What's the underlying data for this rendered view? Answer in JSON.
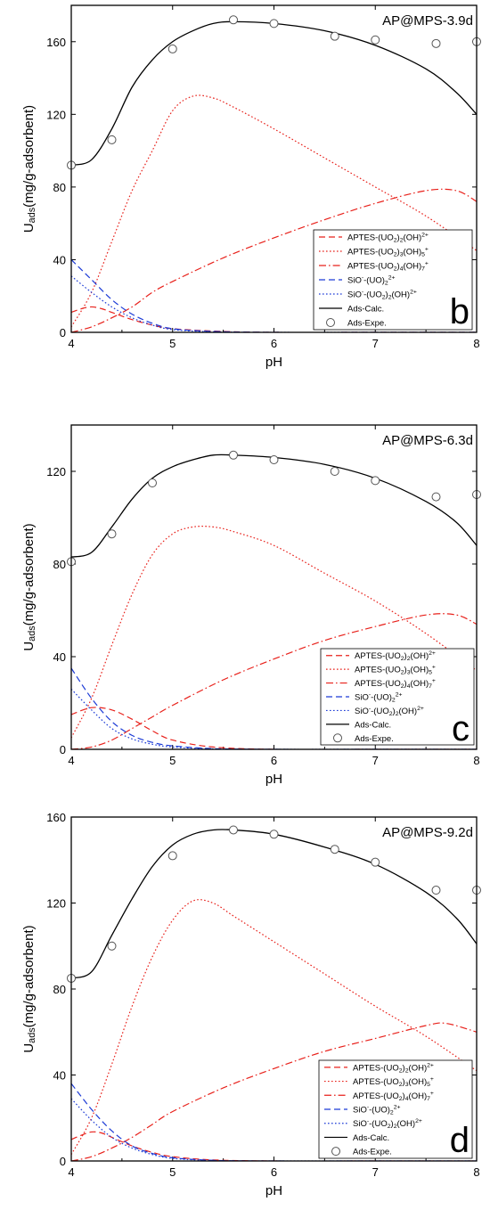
{
  "chart_data": [
    {
      "type": "line",
      "panel_letter": "b",
      "annotation": "AP@MPS-3.9d",
      "xlabel": "pH",
      "ylabel": "U_ads(mg/g-adsorbent)",
      "xlim": [
        4,
        8
      ],
      "ylim": [
        0,
        180
      ],
      "xticks": [
        4,
        5,
        6,
        7,
        8
      ],
      "yticks": [
        0,
        40,
        80,
        120,
        160
      ],
      "grid": false,
      "legend_position": "lower-right",
      "series": [
        {
          "name": "APTES-(UO2)2(OH)2+",
          "color": "#e8211b",
          "dash": "dashed",
          "kind": "line",
          "x": [
            4.0,
            4.1,
            4.2,
            4.3,
            4.4,
            4.6,
            4.8,
            5.0,
            5.5,
            6.0,
            7.0,
            8.0
          ],
          "y": [
            11,
            13,
            14,
            13,
            11,
            7,
            4,
            2,
            0.5,
            0,
            0,
            0
          ]
        },
        {
          "name": "APTES-(UO2)3(OH)5+",
          "color": "#e8211b",
          "dash": "dotted",
          "kind": "line",
          "x": [
            4.0,
            4.2,
            4.4,
            4.6,
            4.8,
            5.0,
            5.2,
            5.4,
            5.6,
            6.0,
            6.5,
            7.0,
            7.5,
            8.0
          ],
          "y": [
            3,
            22,
            50,
            78,
            100,
            122,
            130,
            129,
            124,
            112,
            96,
            80,
            64,
            45
          ]
        },
        {
          "name": "APTES-(UO2)4(OH)7+",
          "color": "#e8211b",
          "dash": "dashdot",
          "kind": "line",
          "x": [
            4.0,
            4.2,
            4.4,
            4.6,
            4.8,
            5.0,
            5.5,
            6.0,
            6.5,
            7.0,
            7.5,
            7.8,
            8.0
          ],
          "y": [
            0,
            3,
            8,
            14,
            22,
            28,
            41,
            52,
            62,
            71,
            78,
            78,
            72
          ]
        },
        {
          "name": "SiO--(UO)2 2+",
          "color": "#1c3bd6",
          "dash": "dashed",
          "kind": "line",
          "x": [
            4.0,
            4.2,
            4.4,
            4.6,
            4.8,
            5.0,
            5.4,
            6.0,
            7.0,
            8.0
          ],
          "y": [
            40,
            29,
            18,
            10,
            5,
            2,
            0.5,
            0,
            0,
            0
          ]
        },
        {
          "name": "SiO--(UO2)2(OH)2+",
          "color": "#1c3bd6",
          "dash": "dotted",
          "kind": "line",
          "x": [
            4.0,
            4.2,
            4.4,
            4.6,
            4.8,
            5.0,
            5.4,
            6.0,
            7.0,
            8.0
          ],
          "y": [
            31,
            22,
            14,
            8,
            4,
            1.5,
            0.3,
            0,
            0,
            0
          ]
        },
        {
          "name": "Ads-Calc.",
          "color": "#000000",
          "dash": "solid",
          "kind": "line",
          "x": [
            4.0,
            4.2,
            4.4,
            4.6,
            4.8,
            5.0,
            5.2,
            5.4,
            5.6,
            6.0,
            6.5,
            7.0,
            7.5,
            7.8,
            8.0
          ],
          "y": [
            92,
            95,
            112,
            135,
            150,
            160,
            166,
            170,
            171,
            170,
            166,
            158,
            145,
            132,
            120
          ]
        },
        {
          "name": "Ads-Expe.",
          "color": "#000000",
          "dash": "none",
          "kind": "marker",
          "x": [
            4.0,
            4.4,
            5.0,
            5.6,
            6.0,
            6.6,
            7.0,
            7.6,
            8.0
          ],
          "y": [
            92,
            106,
            156,
            172,
            170,
            163,
            161,
            159,
            160
          ]
        }
      ]
    },
    {
      "type": "line",
      "panel_letter": "c",
      "annotation": "AP@MPS-6.3d",
      "xlabel": "pH",
      "ylabel": "U_ads(mg/g-adsorbent)",
      "xlim": [
        4,
        8
      ],
      "ylim": [
        0,
        140
      ],
      "xticks": [
        4,
        5,
        6,
        7,
        8
      ],
      "yticks": [
        0,
        40,
        80,
        120
      ],
      "grid": false,
      "legend_position": "lower-right",
      "series": [
        {
          "name": "APTES-(UO2)2(OH)2+",
          "color": "#e8211b",
          "dash": "dashed",
          "kind": "line",
          "x": [
            4.0,
            4.2,
            4.4,
            4.6,
            4.8,
            5.0,
            5.4,
            6.0,
            7.0,
            8.0
          ],
          "y": [
            15,
            18,
            17,
            13,
            8,
            4,
            1,
            0,
            0,
            0
          ]
        },
        {
          "name": "APTES-(UO2)3(OH)5+",
          "color": "#e8211b",
          "dash": "dotted",
          "kind": "line",
          "x": [
            4.0,
            4.2,
            4.4,
            4.6,
            4.8,
            5.0,
            5.2,
            5.4,
            5.6,
            6.0,
            6.5,
            7.0,
            7.5,
            8.0
          ],
          "y": [
            5,
            22,
            45,
            67,
            84,
            93,
            96,
            96,
            94,
            88,
            76,
            64,
            50,
            34
          ]
        },
        {
          "name": "APTES-(UO2)4(OH)7+",
          "color": "#e8211b",
          "dash": "dashdot",
          "kind": "line",
          "x": [
            4.0,
            4.2,
            4.4,
            4.6,
            4.8,
            5.0,
            5.5,
            6.0,
            6.5,
            7.0,
            7.5,
            7.8,
            8.0
          ],
          "y": [
            0,
            1,
            4,
            9,
            14,
            19,
            30,
            39,
            47,
            53,
            58,
            58,
            54
          ]
        },
        {
          "name": "SiO--(UO)2 2+",
          "color": "#1c3bd6",
          "dash": "dashed",
          "kind": "line",
          "x": [
            4.0,
            4.2,
            4.4,
            4.6,
            4.8,
            5.0,
            5.4,
            6.0,
            7.0,
            8.0
          ],
          "y": [
            35,
            22,
            12,
            6,
            3,
            1.5,
            0.3,
            0,
            0,
            0
          ]
        },
        {
          "name": "SiO--(UO2)2(OH)2+",
          "color": "#1c3bd6",
          "dash": "dotted",
          "kind": "line",
          "x": [
            4.0,
            4.2,
            4.4,
            4.6,
            4.8,
            5.0,
            5.4,
            6.0,
            7.0,
            8.0
          ],
          "y": [
            26,
            17,
            9,
            4.5,
            2.2,
            1,
            0.2,
            0,
            0,
            0
          ]
        },
        {
          "name": "Ads-Calc.",
          "color": "#000000",
          "dash": "solid",
          "kind": "line",
          "x": [
            4.0,
            4.2,
            4.4,
            4.6,
            4.8,
            5.0,
            5.2,
            5.4,
            5.6,
            6.0,
            6.5,
            7.0,
            7.5,
            7.8,
            8.0
          ],
          "y": [
            83,
            85,
            96,
            108,
            117,
            122,
            125,
            127,
            127,
            126,
            123,
            117,
            107,
            98,
            88
          ]
        },
        {
          "name": "Ads-Expe.",
          "color": "#000000",
          "dash": "none",
          "kind": "marker",
          "x": [
            4.0,
            4.4,
            4.8,
            5.6,
            6.0,
            6.6,
            7.0,
            7.6,
            8.0
          ],
          "y": [
            81,
            93,
            115,
            127,
            125,
            120,
            116,
            109,
            110
          ]
        }
      ]
    },
    {
      "type": "line",
      "panel_letter": "d",
      "annotation": "AP@MPS-9.2d",
      "xlabel": "pH",
      "ylabel": "U_ads(mg/g-adsorbent)",
      "xlim": [
        4,
        8
      ],
      "ylim": [
        0,
        160
      ],
      "xticks": [
        4,
        5,
        6,
        7,
        8
      ],
      "yticks": [
        0,
        40,
        80,
        120,
        160
      ],
      "grid": false,
      "legend_position": "lower-right",
      "series": [
        {
          "name": "APTES-(UO2)2(OH)2+",
          "color": "#e8211b",
          "dash": "dashed",
          "kind": "line",
          "x": [
            4.0,
            4.1,
            4.2,
            4.3,
            4.4,
            4.6,
            4.8,
            5.0,
            5.4,
            6.0,
            7.0,
            8.0
          ],
          "y": [
            10,
            12,
            13.5,
            13,
            11,
            7,
            4,
            2,
            0.5,
            0,
            0,
            0
          ]
        },
        {
          "name": "APTES-(UO2)3(OH)5+",
          "color": "#e8211b",
          "dash": "dotted",
          "kind": "line",
          "x": [
            4.0,
            4.2,
            4.4,
            4.6,
            4.8,
            5.0,
            5.2,
            5.4,
            5.6,
            6.0,
            6.5,
            7.0,
            7.5,
            8.0
          ],
          "y": [
            3,
            20,
            45,
            72,
            95,
            112,
            121,
            120,
            114,
            102,
            87,
            72,
            58,
            42
          ]
        },
        {
          "name": "APTES-(UO2)4(OH)7+",
          "color": "#e8211b",
          "dash": "dashdot",
          "kind": "line",
          "x": [
            4.0,
            4.2,
            4.4,
            4.6,
            4.8,
            5.0,
            5.5,
            6.0,
            6.5,
            7.0,
            7.5,
            7.7,
            8.0
          ],
          "y": [
            0,
            2,
            6,
            11,
            17,
            23,
            34,
            43,
            51,
            57,
            63,
            64,
            60
          ]
        },
        {
          "name": "SiO--(UO)2 2+",
          "color": "#1c3bd6",
          "dash": "dashed",
          "kind": "line",
          "x": [
            4.0,
            4.2,
            4.4,
            4.6,
            4.8,
            5.0,
            5.4,
            6.0,
            7.0,
            8.0
          ],
          "y": [
            36,
            24,
            14,
            7,
            3.5,
            1.5,
            0.3,
            0,
            0,
            0
          ]
        },
        {
          "name": "SiO--(UO2)2(OH)2+",
          "color": "#1c3bd6",
          "dash": "dotted",
          "kind": "line",
          "x": [
            4.0,
            4.2,
            4.4,
            4.6,
            4.8,
            5.0,
            5.4,
            6.0,
            7.0,
            8.0
          ],
          "y": [
            29,
            19,
            11,
            6,
            3,
            1.2,
            0.2,
            0,
            0,
            0
          ]
        },
        {
          "name": "Ads-Calc.",
          "color": "#000000",
          "dash": "solid",
          "kind": "line",
          "x": [
            4.0,
            4.2,
            4.4,
            4.6,
            4.8,
            5.0,
            5.2,
            5.4,
            5.6,
            6.0,
            6.5,
            7.0,
            7.5,
            7.8,
            8.0
          ],
          "y": [
            85,
            88,
            105,
            122,
            137,
            147,
            152,
            154,
            154,
            152,
            146,
            138,
            125,
            113,
            101
          ]
        },
        {
          "name": "Ads-Expe.",
          "color": "#000000",
          "dash": "none",
          "kind": "marker",
          "x": [
            4.0,
            4.4,
            5.0,
            5.6,
            6.0,
            6.6,
            7.0,
            7.6,
            8.0
          ],
          "y": [
            85,
            100,
            142,
            154,
            152,
            145,
            139,
            126,
            126
          ]
        }
      ]
    }
  ]
}
